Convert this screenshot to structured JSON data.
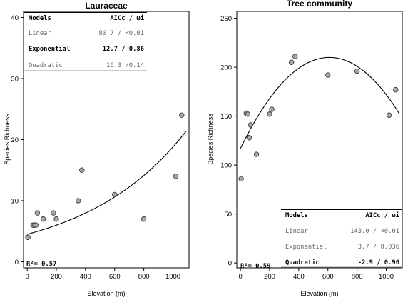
{
  "chart_data": [
    {
      "type": "scatter",
      "title": "Lauraceae",
      "xlabel": "Elevation (m)",
      "ylabel": "Species Richness",
      "xlim": [
        -25,
        1110
      ],
      "ylim": [
        -1,
        41
      ],
      "xticks": [
        0,
        200,
        400,
        600,
        800,
        1000
      ],
      "yticks": [
        0,
        10,
        20,
        30,
        40
      ],
      "tick_labels_x": [
        "0",
        "200",
        "400",
        "600",
        "800",
        "1000"
      ],
      "tick_labels_y": [
        "0",
        "10",
        "20",
        "30",
        "40"
      ],
      "points": [
        {
          "x": 5,
          "y": 4
        },
        {
          "x": 40,
          "y": 6
        },
        {
          "x": 50,
          "y": 6
        },
        {
          "x": 60,
          "y": 6
        },
        {
          "x": 70,
          "y": 8
        },
        {
          "x": 110,
          "y": 7
        },
        {
          "x": 180,
          "y": 8
        },
        {
          "x": 200,
          "y": 7
        },
        {
          "x": 350,
          "y": 10
        },
        {
          "x": 375,
          "y": 15
        },
        {
          "x": 600,
          "y": 11
        },
        {
          "x": 800,
          "y": 7
        },
        {
          "x": 1020,
          "y": 14
        },
        {
          "x": 1060,
          "y": 24
        }
      ],
      "fit": {
        "model": "exponential",
        "x_range": [
          0,
          1090
        ],
        "a": 4.5,
        "b": 0.00143
      },
      "r2_label": "R²= 0.57",
      "table": {
        "header": [
          "Models",
          "AICc / ωi"
        ],
        "rows": [
          {
            "model": "Linear",
            "value": "80.7 / <0.01",
            "bold": false
          },
          {
            "model": "Exponential",
            "value": "12.7 / 0.86",
            "bold": true
          },
          {
            "model": "Quadratic",
            "value": "16.3 /0.14",
            "bold": false
          }
        ]
      }
    },
    {
      "type": "scatter",
      "title": "Tree community",
      "xlabel": "Elevation (m)",
      "ylabel": "Species Richness",
      "xlim": [
        -25,
        1110
      ],
      "ylim": [
        -5,
        257
      ],
      "xticks": [
        0,
        200,
        400,
        600,
        800,
        1000
      ],
      "yticks": [
        0,
        50,
        100,
        150,
        200,
        250
      ],
      "tick_labels_x": [
        "0",
        "200",
        "400",
        "600",
        "800",
        "1000"
      ],
      "tick_labels_y": [
        "0",
        "50",
        "100",
        "150",
        "200",
        "250"
      ],
      "points": [
        {
          "x": 5,
          "y": 86
        },
        {
          "x": 40,
          "y": 153
        },
        {
          "x": 50,
          "y": 152
        },
        {
          "x": 60,
          "y": 128
        },
        {
          "x": 70,
          "y": 141
        },
        {
          "x": 110,
          "y": 111
        },
        {
          "x": 200,
          "y": 152
        },
        {
          "x": 215,
          "y": 157
        },
        {
          "x": 350,
          "y": 205
        },
        {
          "x": 375,
          "y": 211
        },
        {
          "x": 600,
          "y": 192
        },
        {
          "x": 800,
          "y": 196
        },
        {
          "x": 1020,
          "y": 151
        },
        {
          "x": 1065,
          "y": 177
        }
      ],
      "fit": {
        "model": "quadratic",
        "x_range": [
          0,
          1090
        ],
        "vertex_x": 610,
        "vertex_y": 210,
        "k": 0.00025
      },
      "r2_label": "R²= 0.59",
      "table": {
        "header": [
          "Models",
          "AICc / ωi"
        ],
        "rows": [
          {
            "model": "Linear",
            "value": "143.0 / <0.01",
            "bold": false
          },
          {
            "model": "Exponential",
            "value": "3.7 / 0.036",
            "bold": false
          },
          {
            "model": "Quadratic",
            "value": "-2.9 / 0.96",
            "bold": true
          }
        ]
      }
    }
  ]
}
